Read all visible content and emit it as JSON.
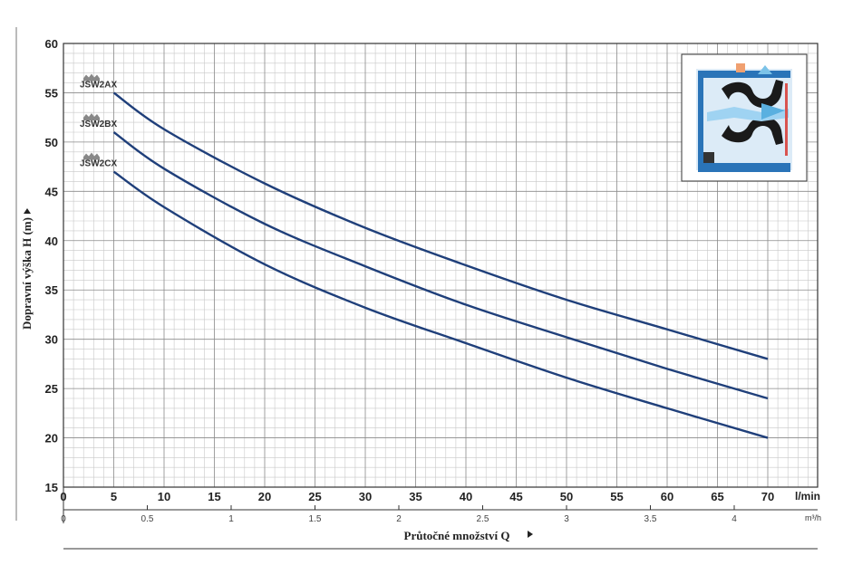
{
  "chart_data": {
    "type": "line",
    "ylabel": "Dopravní výška H (m)",
    "xlabel": "Průtočné množství  Q",
    "x_unit": "l/min",
    "x2_unit": "m³/h",
    "xlim": [
      0,
      75
    ],
    "ylim": [
      15,
      60
    ],
    "x_ticks": [
      0,
      5,
      10,
      15,
      20,
      25,
      30,
      35,
      40,
      45,
      50,
      55,
      60,
      65,
      70
    ],
    "y_ticks": [
      15,
      20,
      25,
      30,
      35,
      40,
      45,
      50,
      55,
      60
    ],
    "x2_ticks": [
      "0",
      "0.5",
      "1",
      "1.5",
      "2",
      "2.5",
      "3",
      "3.5",
      "4"
    ],
    "x2_values": [
      0,
      0.5,
      1,
      1.5,
      2,
      2.5,
      3,
      3.5,
      4
    ],
    "grid": true,
    "series": [
      {
        "name": "JSW2AX",
        "x": [
          5,
          10,
          20,
          30,
          40,
          50,
          60,
          70
        ],
        "y": [
          55,
          51.3,
          45.8,
          41.3,
          37.5,
          34,
          31,
          28
        ]
      },
      {
        "name": "JSW2BX",
        "x": [
          5,
          10,
          20,
          30,
          40,
          50,
          60,
          70
        ],
        "y": [
          51,
          47.3,
          41.7,
          37.4,
          33.5,
          30.2,
          27,
          24
        ]
      },
      {
        "name": "JSW2CX",
        "x": [
          5,
          10,
          20,
          30,
          40,
          50,
          60,
          70
        ],
        "y": [
          47,
          43.4,
          37.6,
          33.2,
          29.6,
          26.1,
          23,
          20
        ]
      }
    ],
    "line_color": "#1f3f7a"
  }
}
